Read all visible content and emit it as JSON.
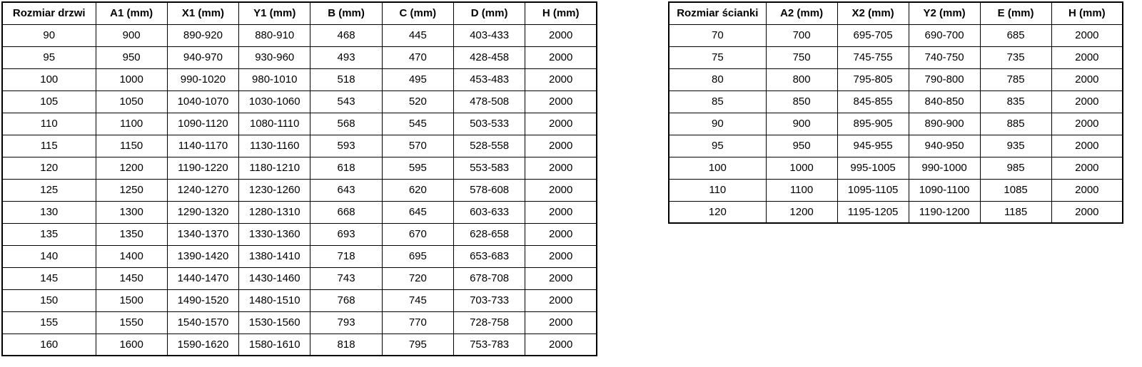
{
  "colors": {
    "border": "#000000",
    "text": "#000000",
    "background": "#ffffff"
  },
  "doors_table": {
    "name": "door-sizes-spec",
    "headers": [
      "Rozmiar drzwi",
      "A1 (mm)",
      "X1 (mm)",
      "Y1 (mm)",
      "B (mm)",
      "C (mm)",
      "D (mm)",
      "H (mm)"
    ],
    "rows": [
      [
        "90",
        "900",
        "890-920",
        "880-910",
        "468",
        "445",
        "403-433",
        "2000"
      ],
      [
        "95",
        "950",
        "940-970",
        "930-960",
        "493",
        "470",
        "428-458",
        "2000"
      ],
      [
        "100",
        "1000",
        "990-1020",
        "980-1010",
        "518",
        "495",
        "453-483",
        "2000"
      ],
      [
        "105",
        "1050",
        "1040-1070",
        "1030-1060",
        "543",
        "520",
        "478-508",
        "2000"
      ],
      [
        "110",
        "1100",
        "1090-1120",
        "1080-1110",
        "568",
        "545",
        "503-533",
        "2000"
      ],
      [
        "115",
        "1150",
        "1140-1170",
        "1130-1160",
        "593",
        "570",
        "528-558",
        "2000"
      ],
      [
        "120",
        "1200",
        "1190-1220",
        "1180-1210",
        "618",
        "595",
        "553-583",
        "2000"
      ],
      [
        "125",
        "1250",
        "1240-1270",
        "1230-1260",
        "643",
        "620",
        "578-608",
        "2000"
      ],
      [
        "130",
        "1300",
        "1290-1320",
        "1280-1310",
        "668",
        "645",
        "603-633",
        "2000"
      ],
      [
        "135",
        "1350",
        "1340-1370",
        "1330-1360",
        "693",
        "670",
        "628-658",
        "2000"
      ],
      [
        "140",
        "1400",
        "1390-1420",
        "1380-1410",
        "718",
        "695",
        "653-683",
        "2000"
      ],
      [
        "145",
        "1450",
        "1440-1470",
        "1430-1460",
        "743",
        "720",
        "678-708",
        "2000"
      ],
      [
        "150",
        "1500",
        "1490-1520",
        "1480-1510",
        "768",
        "745",
        "703-733",
        "2000"
      ],
      [
        "155",
        "1550",
        "1540-1570",
        "1530-1560",
        "793",
        "770",
        "728-758",
        "2000"
      ],
      [
        "160",
        "1600",
        "1590-1620",
        "1580-1610",
        "818",
        "795",
        "753-783",
        "2000"
      ]
    ]
  },
  "walls_table": {
    "name": "wall-panel-sizes-spec",
    "headers": [
      "Rozmiar ścianki",
      "A2 (mm)",
      "X2 (mm)",
      "Y2 (mm)",
      "E (mm)",
      "H (mm)"
    ],
    "rows": [
      [
        "70",
        "700",
        "695-705",
        "690-700",
        "685",
        "2000"
      ],
      [
        "75",
        "750",
        "745-755",
        "740-750",
        "735",
        "2000"
      ],
      [
        "80",
        "800",
        "795-805",
        "790-800",
        "785",
        "2000"
      ],
      [
        "85",
        "850",
        "845-855",
        "840-850",
        "835",
        "2000"
      ],
      [
        "90",
        "900",
        "895-905",
        "890-900",
        "885",
        "2000"
      ],
      [
        "95",
        "950",
        "945-955",
        "940-950",
        "935",
        "2000"
      ],
      [
        "100",
        "1000",
        "995-1005",
        "990-1000",
        "985",
        "2000"
      ],
      [
        "110",
        "1100",
        "1095-1105",
        "1090-1100",
        "1085",
        "2000"
      ],
      [
        "120",
        "1200",
        "1195-1205",
        "1190-1200",
        "1185",
        "2000"
      ]
    ]
  }
}
